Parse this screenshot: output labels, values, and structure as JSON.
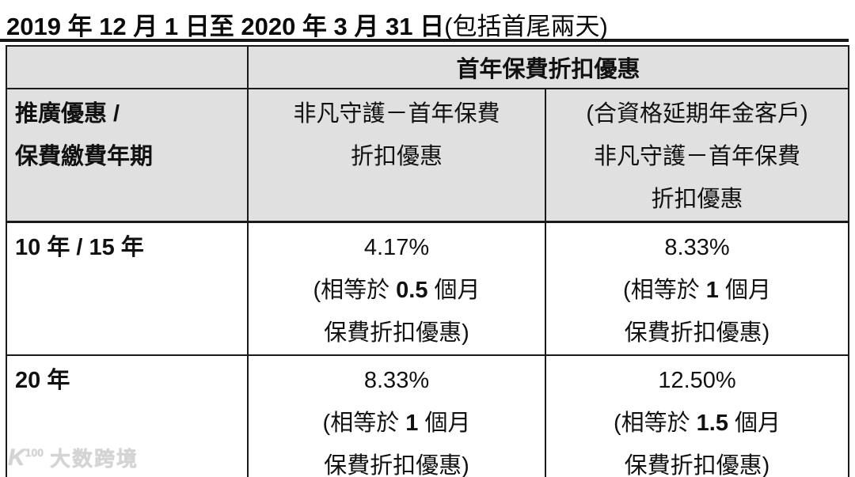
{
  "title": {
    "main": "2019 年 12 月 1 日至 2020 年 3 月 31 日",
    "suffix": "(包括首尾兩天)"
  },
  "table": {
    "span_header": "首年保費折扣優惠",
    "col_headers": [
      {
        "lines": [
          "推廣優惠 /",
          "保費繳費年期"
        ]
      },
      {
        "lines": [
          "非凡守護－首年保費",
          "折扣優惠"
        ]
      },
      {
        "lines": [
          "(合資格延期年金客戶)",
          "非凡守護－首年保費",
          "折扣優惠"
        ]
      }
    ],
    "rows": [
      {
        "label": "10 年 / 15 年",
        "cells": [
          {
            "percent": "4.17%",
            "eq_pre": "(相等於 ",
            "eq_num": "0.5",
            "eq_post": " 個月",
            "note": "保費折扣優惠)"
          },
          {
            "percent": "8.33%",
            "eq_pre": "(相等於 ",
            "eq_num": "1",
            "eq_post": " 個月",
            "note": "保費折扣優惠)"
          }
        ]
      },
      {
        "label": "20 年",
        "cells": [
          {
            "percent": "8.33%",
            "eq_pre": "(相等於 ",
            "eq_num": "1",
            "eq_post": " 個月",
            "note": "保費折扣優惠)"
          },
          {
            "percent": "12.50%",
            "eq_pre": "(相等於 ",
            "eq_num": "1.5",
            "eq_post": " 個月",
            "note": "保費折扣優惠)"
          }
        ]
      }
    ]
  },
  "watermark": {
    "logo_main": "K",
    "logo_sup": "100",
    "text": "大数跨境"
  },
  "colors": {
    "header_bg": "#e0e0e0",
    "border": "#1a1a1a",
    "text": "#111111",
    "watermark": "#d4d4d4"
  }
}
